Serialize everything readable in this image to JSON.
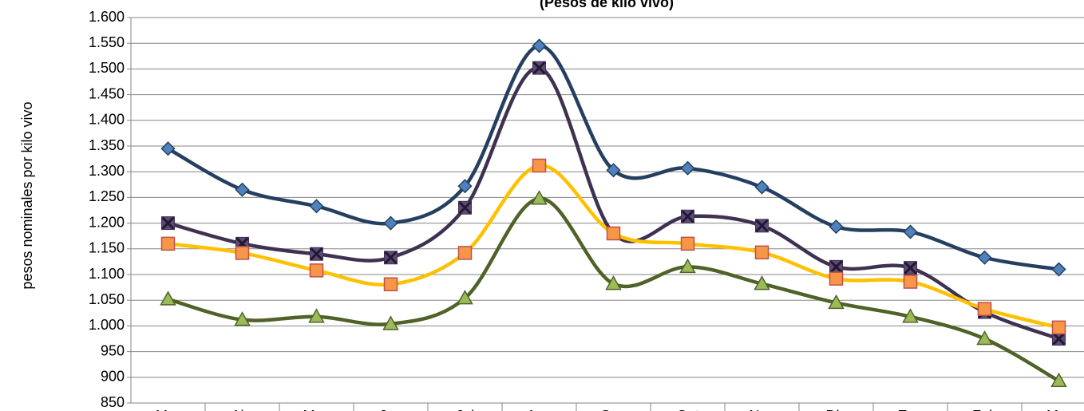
{
  "chart_data": {
    "type": "line",
    "title": "(Pesos de kilo vivo)",
    "y_label": "pesos  nominales por kilo vivo",
    "categories": [
      "Mar",
      "Abr",
      "May",
      "Jun",
      "Jul",
      "Ago",
      "Sep",
      "Oct",
      "Nov",
      "Dic",
      "Ene",
      "Feb",
      "Mar"
    ],
    "series": [
      {
        "color": "#243f60",
        "marker": "diamond",
        "marker_color": "#4f81bd",
        "values": [
          1345,
          1265,
          1233,
          1200,
          1272,
          1545,
          1303,
          1307,
          1270,
          1193,
          1183,
          1133,
          1110
        ]
      },
      {
        "color": "#3f3151",
        "marker": "x",
        "marker_color": "#5f497a",
        "values": [
          1200,
          1160,
          1140,
          1133,
          1230,
          1502,
          1180,
          1213,
          1195,
          1115,
          1113,
          1027,
          975
        ]
      },
      {
        "color": "#ffc000",
        "marker": "square",
        "marker_color": "#f79646",
        "values": [
          1160,
          1142,
          1108,
          1081,
          1142,
          1312,
          1180,
          1160,
          1143,
          1092,
          1086,
          1033,
          997
        ]
      },
      {
        "color": "#4f6228",
        "marker": "triangle",
        "marker_color": "#9bbb59",
        "values": [
          1052,
          1012,
          1018,
          1004,
          1054,
          1248,
          1082,
          1115,
          1082,
          1045,
          1018,
          975,
          893
        ]
      }
    ],
    "ylim": [
      850,
      1600
    ],
    "yticks": [
      {
        "value": 850,
        "label": "850"
      },
      900,
      950,
      {
        "value": 1000,
        "label": "1.000"
      },
      {
        "value": 1050,
        "label": "1.050"
      },
      {
        "value": 1100,
        "label": "1.100"
      },
      {
        "value": 1150,
        "label": "1.150"
      },
      {
        "value": 1200,
        "label": "1.200"
      },
      {
        "value": 1250,
        "label": "1.250"
      },
      {
        "value": 1300,
        "label": "1.300"
      },
      {
        "value": 1350,
        "label": "1.350"
      },
      {
        "value": 1400,
        "label": "1.400"
      },
      {
        "value": 1450,
        "label": "1.450"
      },
      {
        "value": 1500,
        "label": "1.500"
      },
      {
        "value": 1550,
        "label": "1.550"
      },
      {
        "value": 1600,
        "label": "1.600"
      }
    ],
    "grid": true
  }
}
